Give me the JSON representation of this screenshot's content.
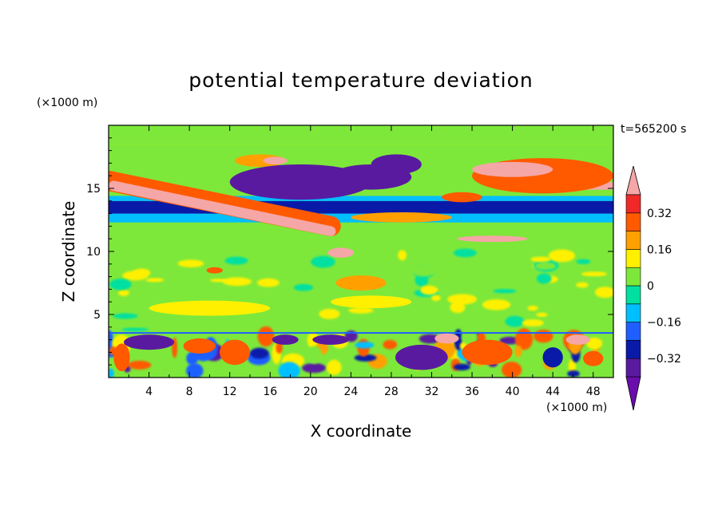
{
  "chart_data": {
    "type": "heatmap",
    "title": "potential temperature deviation",
    "xlabel": "X coordinate",
    "ylabel": "Z coordinate",
    "x_unit": "(×1000 m)",
    "z_unit": "(×1000 m)",
    "time_label": "t=565200 s",
    "xlim": [
      0,
      50
    ],
    "ylim": [
      0,
      20
    ],
    "x_ticks": [
      4,
      8,
      12,
      16,
      20,
      24,
      28,
      32,
      36,
      40,
      44,
      48
    ],
    "y_ticks": [
      5,
      10,
      15
    ],
    "colorbar": {
      "labels": [
        "0.32",
        "0.16",
        "0",
        "−0.16",
        "−0.32"
      ],
      "label_values": [
        0.32,
        0.16,
        0,
        -0.16,
        -0.32
      ],
      "levels": [
        -0.4,
        -0.32,
        -0.24,
        -0.16,
        -0.08,
        0,
        0.08,
        0.16,
        0.24,
        0.32,
        0.4
      ],
      "colors": [
        "#6a0dad",
        "#5a1aa0",
        "#0a1aa8",
        "#1f5fff",
        "#00bfff",
        "#00e0a0",
        "#7de83a",
        "#fff000",
        "#ffa000",
        "#ff5a00",
        "#f02828",
        "#f5a6a6"
      ]
    },
    "bands": [
      {
        "x": [
          0,
          50
        ],
        "z": [
          10.2,
          12.3
        ],
        "value": 0.02
      },
      {
        "x": [
          0,
          50
        ],
        "z": [
          12.3,
          13
        ],
        "value": -0.1
      },
      {
        "x": [
          0,
          50
        ],
        "z": [
          13,
          14
        ],
        "value": -0.26
      },
      {
        "x": [
          0,
          50
        ],
        "z": [
          14,
          14.4
        ],
        "value": -0.1
      },
      {
        "x": [
          0,
          50
        ],
        "z": [
          18.5,
          20
        ],
        "value": 0.05
      }
    ],
    "features": [
      {
        "x": 15,
        "z": 17.2,
        "rx": 2.5,
        "rz": 0.5,
        "value": 0.2
      },
      {
        "x": 16.5,
        "z": 17.2,
        "rx": 1.2,
        "rz": 0.3,
        "value": 0.42
      },
      {
        "x": 19,
        "z": 15.5,
        "rx": 7,
        "rz": 1.4,
        "value": -0.36
      },
      {
        "x": 26,
        "z": 15.9,
        "rx": 4,
        "rz": 1.0,
        "value": -0.34
      },
      {
        "x": 28.5,
        "z": 16.9,
        "rx": 2.5,
        "rz": 0.8,
        "value": -0.33
      },
      {
        "x": 43,
        "z": 16,
        "rx": 7,
        "rz": 1.4,
        "value": 0.25
      },
      {
        "x": 40,
        "z": 16.5,
        "rx": 4,
        "rz": 0.6,
        "value": 0.42
      },
      {
        "x": 35,
        "z": 14.3,
        "rx": 2,
        "rz": 0.4,
        "value": 0.3
      },
      {
        "x": 29,
        "z": 12.7,
        "rx": 5,
        "rz": 0.4,
        "value": 0.22
      },
      {
        "x": 38,
        "z": 11,
        "rx": 3.5,
        "rz": 0.25,
        "value": 0.42
      },
      {
        "x": 23,
        "z": 9.9,
        "rx": 1.3,
        "rz": 0.4,
        "value": 0.42
      },
      {
        "x": 10.5,
        "z": 8.5,
        "rx": 0.8,
        "rz": 0.25,
        "value": 0.3
      },
      {
        "x": 25,
        "z": 7.5,
        "rx": 2.5,
        "rz": 0.6,
        "value": 0.2
      },
      {
        "x": 26,
        "z": 6,
        "rx": 4,
        "rz": 0.5,
        "value": 0.1
      },
      {
        "x": 10,
        "z": 5.5,
        "rx": 6,
        "rz": 0.6,
        "value": 0.1
      },
      {
        "x": 4,
        "z": 2.8,
        "rx": 2.5,
        "rz": 0.6,
        "value": -0.35
      },
      {
        "x": 1.3,
        "z": 1.6,
        "rx": 0.8,
        "rz": 1.1,
        "value": 0.3
      },
      {
        "x": 9,
        "z": 2.5,
        "rx": 1.6,
        "rz": 0.6,
        "value": 0.3
      },
      {
        "x": 12.5,
        "z": 2,
        "rx": 1.5,
        "rz": 1.0,
        "value": 0.3
      },
      {
        "x": 17.5,
        "z": 3,
        "rx": 1.3,
        "rz": 0.4,
        "value": -0.34
      },
      {
        "x": 22,
        "z": 3,
        "rx": 1.8,
        "rz": 0.4,
        "value": -0.34
      },
      {
        "x": 31,
        "z": 1.6,
        "rx": 2.6,
        "rz": 1.0,
        "value": -0.36
      },
      {
        "x": 33.5,
        "z": 3.1,
        "rx": 1.2,
        "rz": 0.4,
        "value": 0.42
      },
      {
        "x": 37.5,
        "z": 2,
        "rx": 2.5,
        "rz": 1.0,
        "value": 0.3
      },
      {
        "x": 46.5,
        "z": 3,
        "rx": 1.2,
        "rz": 0.4,
        "value": 0.42
      },
      {
        "x": 44,
        "z": 1.6,
        "rx": 1.0,
        "rz": 0.8,
        "value": -0.32
      },
      {
        "x": 48,
        "z": 1.5,
        "rx": 1.0,
        "rz": 0.6,
        "value": 0.3
      }
    ],
    "streaks": [
      {
        "x0": 0.5,
        "z0": 15.2,
        "x1": 22,
        "z1": 11.6,
        "width": 0.8,
        "value": 0.42
      },
      {
        "x0": 0,
        "z0": 15.6,
        "x1": 22,
        "z1": 12,
        "width": 1.6,
        "value": 0.3
      },
      {
        "x0": 44,
        "z0": 15.2,
        "x1": 50,
        "z1": 15.2,
        "width": 0.6,
        "value": 0.42
      }
    ]
  }
}
